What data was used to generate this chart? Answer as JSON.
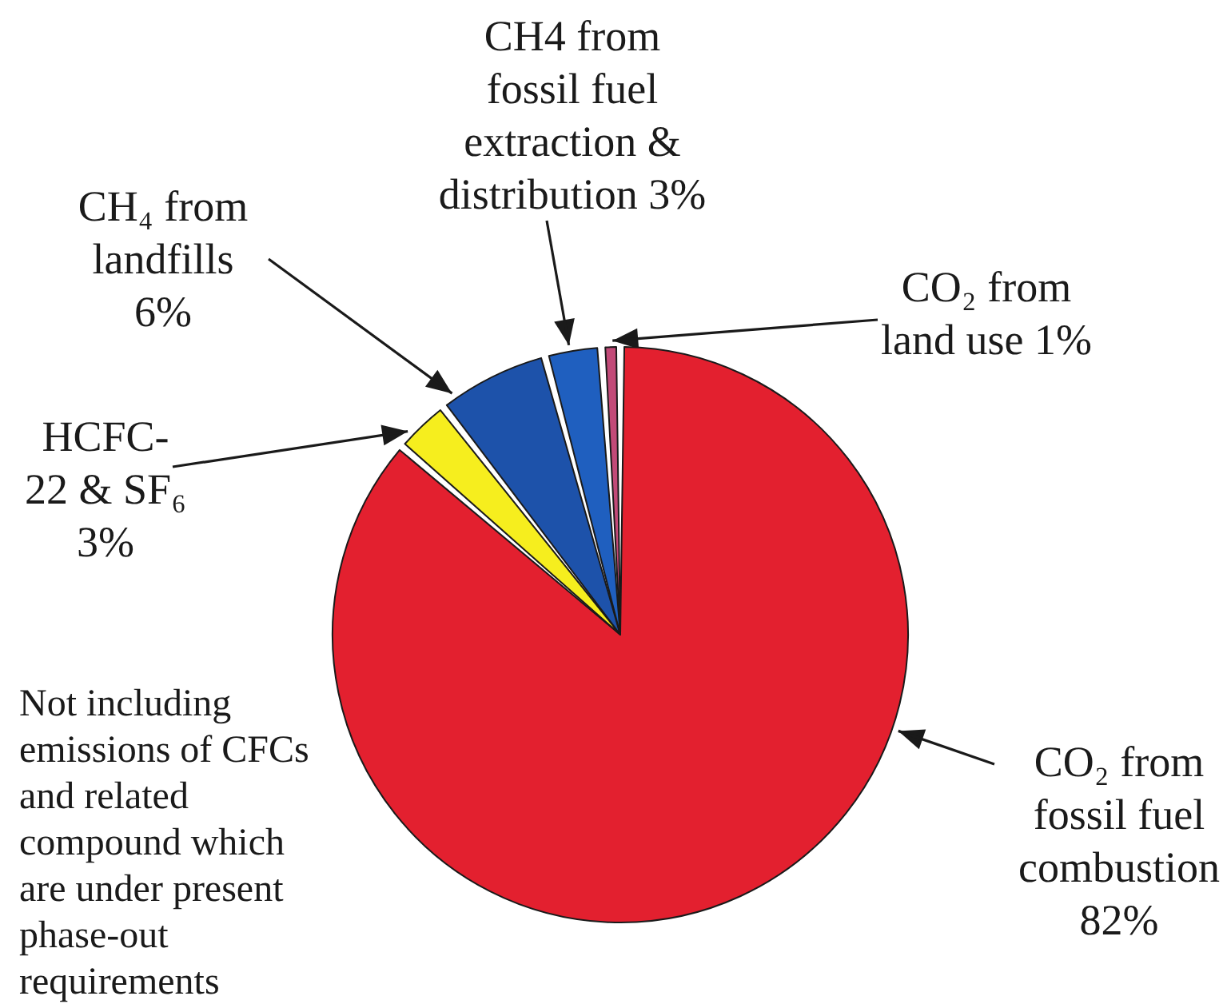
{
  "chart_data": {
    "type": "pie",
    "categories": [
      "CO₂ from fossil fuel combustion",
      "HCFC-22 & SF₆",
      "CH₄ from landfills",
      "CH4 from fossil fuel extraction & distribution",
      "CO₂ from land use"
    ],
    "values": [
      82,
      3,
      6,
      3,
      1
    ],
    "value_labels": [
      "82%",
      "3%",
      "6%",
      "3%",
      "1%"
    ],
    "colors": [
      "#e3202f",
      "#f6ee1e",
      "#1d52aa",
      "#1f5fbf",
      "#c24a78"
    ],
    "annotations": [
      "Not including emissions of CFCs and related compound which are under present phase-out requirements"
    ]
  }
}
